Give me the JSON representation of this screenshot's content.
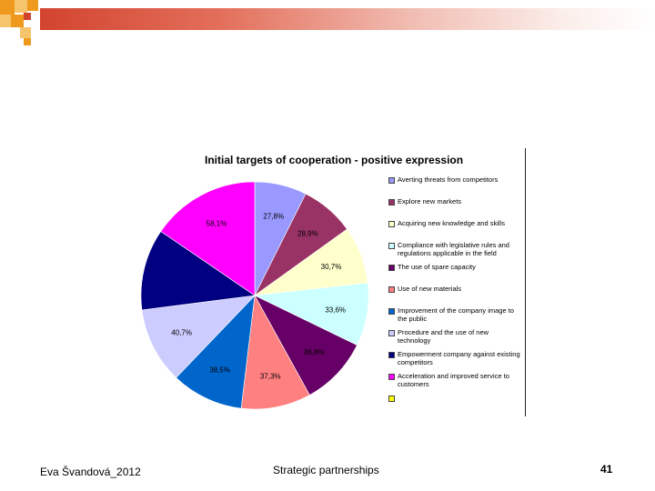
{
  "slide": {
    "footer_author": "Eva Švandová_2012",
    "footer_title": "Strategic partnerships",
    "page_number": "41",
    "accent_colors": [
      "#ef9a1e",
      "#f6c46c",
      "#d2442f"
    ]
  },
  "chart_data": {
    "type": "pie",
    "title": "Initial targets of cooperation - positive expression",
    "legend_position": "right",
    "slices": [
      {
        "name": "Averting threats from competitors",
        "label": "27,8%",
        "value": 27.8,
        "color": "#9999ff"
      },
      {
        "name": "Explore new markets",
        "label": "28,9%",
        "value": 28.9,
        "color": "#993366"
      },
      {
        "name": "Acquiring new knowledge and skills",
        "label": "30,7%",
        "value": 30.7,
        "color": "#ffffcc"
      },
      {
        "name": "Compliance with legislative rules and regulations applicable in the field",
        "label": "33,6%",
        "value": 33.6,
        "color": "#ccffff"
      },
      {
        "name": "The use of spare capacity",
        "label": "36,8%",
        "value": 36.8,
        "color": "#660066"
      },
      {
        "name": "Use of new materials",
        "label": "37,3%",
        "value": 37.3,
        "color": "#ff8080"
      },
      {
        "name": "Improvement of the company image to the public",
        "label": "38,5%",
        "value": 38.5,
        "color": "#0066cc"
      },
      {
        "name": "Procedure and the use of new technology",
        "label": "40,7%",
        "value": 40.7,
        "color": "#ccccff"
      },
      {
        "name": "Empowerment company against existing competitors",
        "label": "",
        "value": 43.5,
        "color": "#000080"
      },
      {
        "name": "Acceleration and improved service to customers",
        "label": "58,1%",
        "value": 58.1,
        "color": "#ff00ff"
      },
      {
        "name": "",
        "label": "",
        "value": 0,
        "color": "#ffff00"
      }
    ]
  }
}
